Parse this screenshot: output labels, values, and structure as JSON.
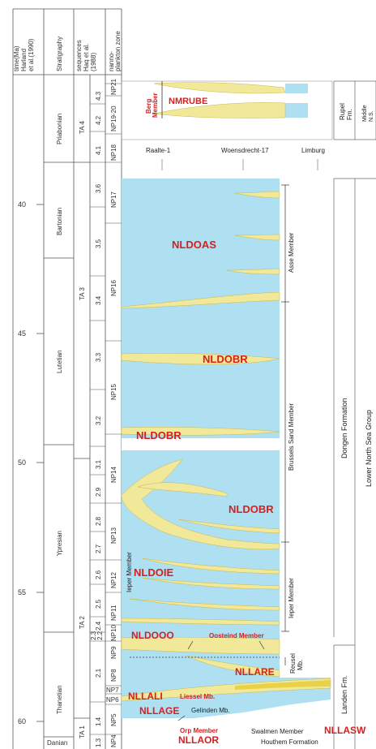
{
  "headers": {
    "time": [
      "time(Ma)",
      "Harland",
      "et al.(1990)"
    ],
    "stratigraphy": "Stratigraphy",
    "sequences": [
      "sequences",
      "Haq et al.",
      "(1988)"
    ],
    "nanno": [
      "nanno-",
      "plankton zone"
    ]
  },
  "time_ticks": [
    "40",
    "45",
    "50",
    "55",
    "60"
  ],
  "stages": [
    "Priabonian",
    "Bartonian",
    "Lutetian",
    "Ypresian",
    "Thanetian",
    "Danian"
  ],
  "sequence_groups": [
    "TA 4",
    "TA 3",
    "TA 2",
    "TA 1"
  ],
  "sequences": [
    "4.3",
    "4.2",
    "4.1",
    "3.6",
    "3.5",
    "3.4",
    "3.3",
    "3.2",
    "3.1",
    "2.9",
    "2.8",
    "2.7",
    "2.6",
    "2.5",
    "2.4",
    "2.3",
    "2.2",
    "2.1",
    "1.4",
    "1.3"
  ],
  "nanno_zones": [
    "NP21",
    "NP19-20",
    "NP18",
    "NP17",
    "NP16",
    "NP15",
    "NP14",
    "NP13",
    "NP12",
    "NP11",
    "NP10",
    "NP9",
    "NP8",
    "NP7",
    "NP6",
    "NP5",
    "NP4"
  ],
  "wells": [
    "Raalte-1",
    "Woensdrecht-17",
    "Limburg"
  ],
  "units": {
    "berg_member": [
      "Berg",
      "Member"
    ],
    "nmrube": "NMRUBE",
    "nldoas": "NLDOAS",
    "nldobr": "NLDOBR",
    "nldoie": "NLDOIE",
    "nldooo": "NLDOOO",
    "oosteind": "Oosteind Member",
    "nllare": "NLLARE",
    "nllali": "NLLALI",
    "liessel": "Liessel Mb.",
    "nllage": "NLLAGE",
    "gelinden": "Gelinden Mb.",
    "orp_member": "Orp Member",
    "nllaor": "NLLAOR",
    "swalmen": "Swalmen Member",
    "nllasw": "NLLASW",
    "houthem": "Houthem Formation"
  },
  "members": {
    "asse": "Asse Member",
    "brussels": "Brussels Sand Member",
    "ieper_left": "Ieper Member",
    "ieper_right": "Ieper Member",
    "reusel": [
      "Reusel",
      "Mb."
    ]
  },
  "formations": {
    "rupel": [
      "Rupel",
      "Fm."
    ],
    "middle": [
      "Middle",
      "N.S."
    ],
    "dongen": "Dongen Formation",
    "landen": "Landen Fm.",
    "group": "Lower North Sea Group"
  },
  "colors": {
    "water": "#aee0f2",
    "sand": "#f2e89a",
    "sand_edge": "#c9b84a",
    "red": "#d61f1f",
    "frame": "#333333"
  }
}
